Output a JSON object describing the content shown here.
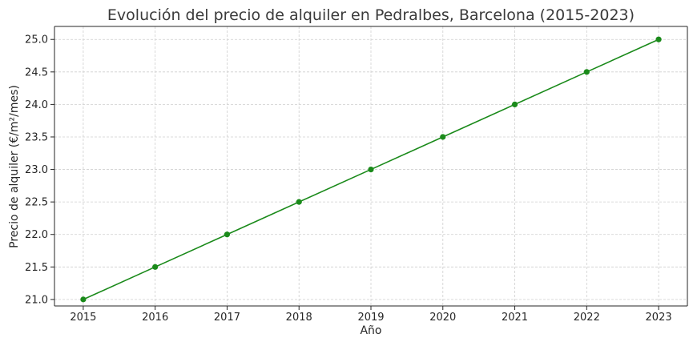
{
  "chart_data": {
    "type": "line",
    "title": "Evolución del precio de alquiler en Pedralbes, Barcelona (2015-2023)",
    "xlabel": "Año",
    "ylabel": "Precio de alquiler (€/m²/mes)",
    "x": [
      2015,
      2016,
      2017,
      2018,
      2019,
      2020,
      2021,
      2022,
      2023
    ],
    "xtick_labels": [
      "2015",
      "2016",
      "2017",
      "2018",
      "2019",
      "2020",
      "2021",
      "2022",
      "2023"
    ],
    "yticks": [
      21.0,
      21.5,
      22.0,
      22.5,
      23.0,
      23.5,
      24.0,
      24.5,
      25.0
    ],
    "ytick_labels": [
      "21.0",
      "21.5",
      "22.0",
      "22.5",
      "23.0",
      "23.5",
      "24.0",
      "24.5",
      "25.0"
    ],
    "xlim": [
      2014.6,
      2023.4
    ],
    "ylim": [
      20.9,
      25.2
    ],
    "grid": true,
    "series": [
      {
        "values": [
          21.0,
          21.5,
          22.0,
          22.5,
          23.0,
          23.5,
          24.0,
          24.5,
          25.0
        ],
        "color": "#1a8a1a",
        "marker": "circle"
      }
    ]
  }
}
